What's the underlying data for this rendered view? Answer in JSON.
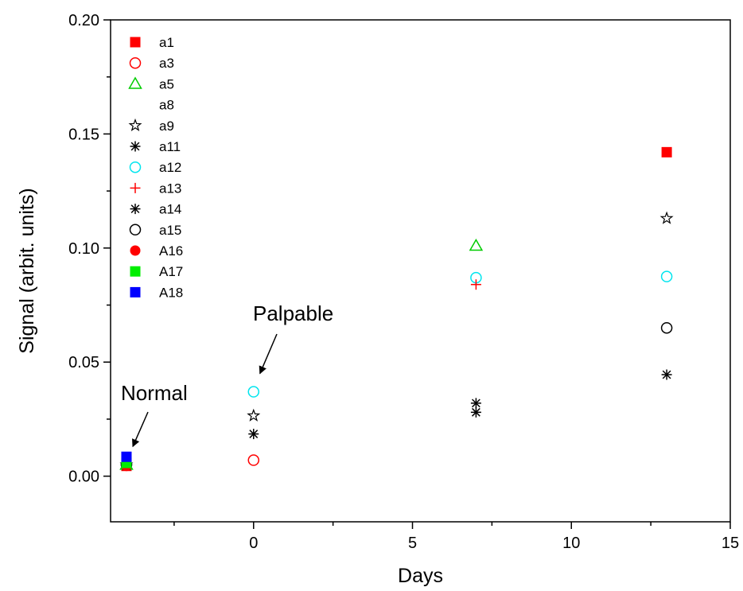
{
  "chart_data": {
    "type": "scatter",
    "xlabel": "Days",
    "ylabel": "Signal (arbit. units)",
    "xlim": [
      -4.5,
      15
    ],
    "ylim": [
      -0.02,
      0.2
    ],
    "xticks": [
      0,
      5,
      10,
      15
    ],
    "xticks_minor": [
      -2.5,
      2.5,
      7.5,
      12.5
    ],
    "yticks": [
      0.0,
      0.05,
      0.1,
      0.15,
      0.2
    ],
    "ytick_labels": [
      "0.00",
      "0.05",
      "0.10",
      "0.15",
      "0.20"
    ],
    "grid": false,
    "legend_position": "top-left",
    "series": [
      {
        "name": "a1",
        "marker": "square-filled",
        "color": "#ff0000",
        "x": [
          -4,
          13
        ],
        "y": [
          0.0045,
          0.142
        ]
      },
      {
        "name": "a3",
        "marker": "circle-open",
        "color": "#ff0000",
        "x": [
          -4,
          0
        ],
        "y": [
          0.005,
          0.007
        ]
      },
      {
        "name": "a5",
        "marker": "triangle-open",
        "color": "#00cc00",
        "x": [
          -4,
          7
        ],
        "y": [
          0.005,
          0.101
        ]
      },
      {
        "name": "a8",
        "marker": "none",
        "color": "#ffffff",
        "x": [],
        "y": []
      },
      {
        "name": "a9",
        "marker": "star-open",
        "color": "#000000",
        "x": [
          -4,
          0,
          13
        ],
        "y": [
          0.005,
          0.0265,
          0.113
        ]
      },
      {
        "name": "a11",
        "marker": "asterisk",
        "color": "#000000",
        "x": [
          -4,
          0,
          7
        ],
        "y": [
          0.005,
          0.0185,
          0.028
        ]
      },
      {
        "name": "a12",
        "marker": "circle-open",
        "color": "#00e5ee",
        "x": [
          -4,
          0,
          7,
          13
        ],
        "y": [
          0.005,
          0.037,
          0.087,
          0.0875
        ]
      },
      {
        "name": "a13",
        "marker": "plus",
        "color": "#ff0000",
        "x": [
          -4,
          7
        ],
        "y": [
          0.005,
          0.084
        ]
      },
      {
        "name": "a14",
        "marker": "asterisk",
        "color": "#000000",
        "x": [
          -4,
          7,
          13
        ],
        "y": [
          0.005,
          0.032,
          0.0445
        ]
      },
      {
        "name": "a15",
        "marker": "circle-open",
        "color": "#000000",
        "x": [
          -4,
          13
        ],
        "y": [
          0.005,
          0.065
        ]
      },
      {
        "name": "A16",
        "marker": "circle-filled",
        "color": "#ff0000",
        "x": [
          -4
        ],
        "y": [
          0.0045
        ]
      },
      {
        "name": "A17",
        "marker": "square-filled",
        "color": "#00ee00",
        "x": [
          -4
        ],
        "y": [
          0.0058
        ]
      },
      {
        "name": "A18",
        "marker": "square-filled",
        "color": "#0000ff",
        "x": [
          -4
        ],
        "y": [
          0.0085
        ]
      }
    ],
    "annotations": [
      {
        "text": "Normal",
        "target_x": -4,
        "target_y": 0.013
      },
      {
        "text": "Palpable",
        "target_x": 0,
        "target_y": 0.045
      }
    ]
  }
}
